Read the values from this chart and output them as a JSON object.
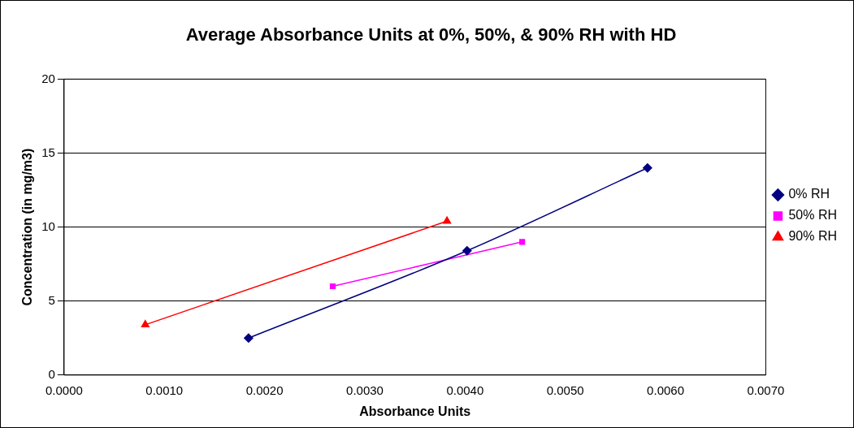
{
  "chart_data": {
    "type": "line",
    "title": "Average Absorbance Units at 0%, 50%, & 90% RH with HD",
    "xlabel": "Absorbance Units",
    "ylabel": "Concentration (in mg/m3)",
    "series": [
      {
        "name": "0% RH",
        "color": "#000080",
        "marker": "diamond",
        "x": [
          0.00184,
          0.00402,
          0.00582
        ],
        "values": [
          2.5,
          8.4,
          14.0
        ]
      },
      {
        "name": "50% RH",
        "color": "#ff00ff",
        "marker": "square",
        "x": [
          0.00268,
          0.00457
        ],
        "values": [
          6.0,
          9.0
        ]
      },
      {
        "name": "90% RH",
        "color": "#ff0000",
        "marker": "triangle",
        "x": [
          0.00081,
          0.00382
        ],
        "values": [
          3.4,
          10.4
        ]
      }
    ],
    "xlim": [
      0,
      0.007
    ],
    "xticks": [
      {
        "value": 0,
        "label": "0.0000"
      },
      {
        "value": 0.001,
        "label": "0.0010"
      },
      {
        "value": 0.002,
        "label": "0.0020"
      },
      {
        "value": 0.003,
        "label": "0.0030"
      },
      {
        "value": 0.004,
        "label": "0.0040"
      },
      {
        "value": 0.005,
        "label": "0.0050"
      },
      {
        "value": 0.006,
        "label": "0.0060"
      },
      {
        "value": 0.007,
        "label": "0.0070"
      }
    ],
    "ylim": [
      0,
      20
    ],
    "yticks": [
      0,
      5,
      10,
      15,
      20
    ],
    "grid": "y",
    "legend": "right"
  }
}
